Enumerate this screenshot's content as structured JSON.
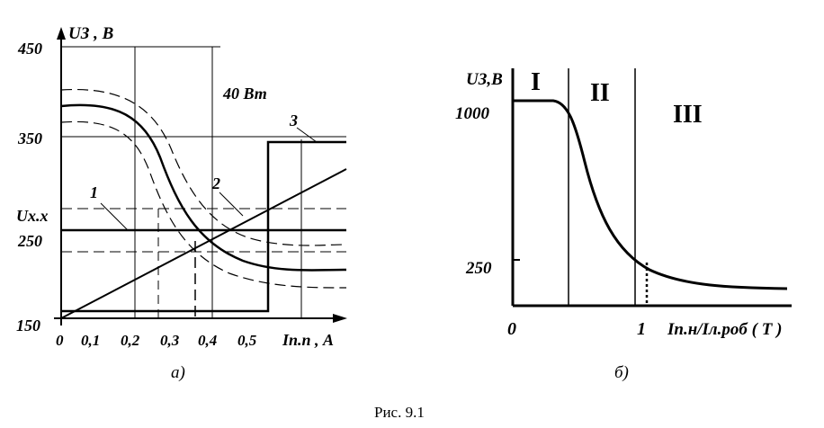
{
  "figure_caption": "Рис. 9.1",
  "panel_a": {
    "label": "а)",
    "y_axis_label": "UЗ , В",
    "x_axis_label": "Iп.п , А",
    "y_ticks": [
      "450",
      "350",
      "250",
      "150"
    ],
    "u_xx_label": "Ux.x",
    "x_ticks": [
      "0",
      "0,1",
      "0,2",
      "0,3",
      "0,4",
      "0,5"
    ],
    "power_label": "40 Вт",
    "curve_labels": [
      "1",
      "2",
      "3"
    ]
  },
  "panel_b": {
    "label": "б)",
    "y_axis_label": "UЗ,В",
    "x_axis_label": "Iп.н/Iл.роб ( Т )",
    "y_ticks": [
      "1000",
      "250"
    ],
    "x_ticks": [
      "0",
      "1"
    ],
    "regions": [
      "I",
      "II",
      "III"
    ]
  }
}
